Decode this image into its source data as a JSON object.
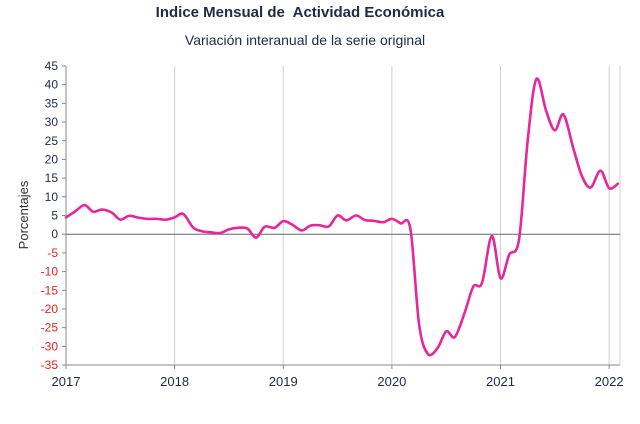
{
  "chart_data": {
    "type": "line",
    "title": "Indice Mensual de  Actividad Económica",
    "subtitle": "Variación interanual de la serie original",
    "xlabel": "",
    "ylabel": "Porcentajes",
    "ylim": [
      -35,
      45
    ],
    "y_ticks": [
      45,
      40,
      35,
      30,
      25,
      20,
      15,
      10,
      5,
      0,
      -5,
      -10,
      -15,
      -20,
      -25,
      -30,
      -35
    ],
    "y_tick_labels": [
      "45",
      "40",
      "35",
      "30",
      "25",
      "20",
      "15",
      "10",
      "5",
      "0",
      "-5",
      "-10",
      "-15",
      "-20",
      "-25",
      "-30",
      "-35"
    ],
    "x_tick_labels": [
      "2017",
      "2018",
      "2019",
      "2020",
      "2021",
      "2022"
    ],
    "x_tick_values": [
      2017,
      2018,
      2019,
      2020,
      2021,
      2022
    ],
    "xlim": [
      2017,
      2022.1
    ],
    "grid": "vertical-year-lines",
    "line_color": "#e6279a",
    "negative_tick_color": "#e8231f",
    "positive_tick_color": "#1f2a44",
    "series": [
      {
        "values": [
          [
            2017.0,
            4.5
          ],
          [
            2017.08,
            6.0
          ],
          [
            2017.17,
            7.8
          ],
          [
            2017.25,
            6.0
          ],
          [
            2017.33,
            6.6
          ],
          [
            2017.42,
            5.8
          ],
          [
            2017.5,
            3.9
          ],
          [
            2017.58,
            4.9
          ],
          [
            2017.67,
            4.4
          ],
          [
            2017.75,
            4.1
          ],
          [
            2017.83,
            4.1
          ],
          [
            2017.92,
            3.9
          ],
          [
            2018.0,
            4.5
          ],
          [
            2018.08,
            5.4
          ],
          [
            2018.17,
            1.8
          ],
          [
            2018.25,
            0.8
          ],
          [
            2018.33,
            0.5
          ],
          [
            2018.42,
            0.3
          ],
          [
            2018.5,
            1.3
          ],
          [
            2018.58,
            1.7
          ],
          [
            2018.67,
            1.5
          ],
          [
            2018.75,
            -0.9
          ],
          [
            2018.83,
            2.0
          ],
          [
            2018.92,
            1.7
          ],
          [
            2019.0,
            3.5
          ],
          [
            2019.08,
            2.6
          ],
          [
            2019.17,
            1.0
          ],
          [
            2019.25,
            2.3
          ],
          [
            2019.33,
            2.4
          ],
          [
            2019.42,
            2.1
          ],
          [
            2019.5,
            5.0
          ],
          [
            2019.58,
            3.7
          ],
          [
            2019.67,
            5.0
          ],
          [
            2019.75,
            3.8
          ],
          [
            2019.83,
            3.6
          ],
          [
            2019.92,
            3.2
          ],
          [
            2020.0,
            4.1
          ],
          [
            2020.08,
            2.9
          ],
          [
            2020.17,
            1.5
          ],
          [
            2020.25,
            -24.0
          ],
          [
            2020.33,
            -32.0
          ],
          [
            2020.42,
            -30.5
          ],
          [
            2020.5,
            -26.0
          ],
          [
            2020.58,
            -27.5
          ],
          [
            2020.67,
            -21.0
          ],
          [
            2020.75,
            -14.0
          ],
          [
            2020.83,
            -13.0
          ],
          [
            2020.92,
            -0.5
          ],
          [
            2021.0,
            -11.8
          ],
          [
            2021.08,
            -5.5
          ],
          [
            2021.17,
            -1.5
          ],
          [
            2021.25,
            25.0
          ],
          [
            2021.33,
            41.5
          ],
          [
            2021.42,
            33.0
          ],
          [
            2021.5,
            27.8
          ],
          [
            2021.58,
            32.0
          ],
          [
            2021.67,
            23.0
          ],
          [
            2021.75,
            15.5
          ],
          [
            2021.83,
            12.5
          ],
          [
            2021.92,
            17.0
          ],
          [
            2022.0,
            12.3
          ],
          [
            2022.08,
            13.5
          ]
        ]
      }
    ]
  }
}
